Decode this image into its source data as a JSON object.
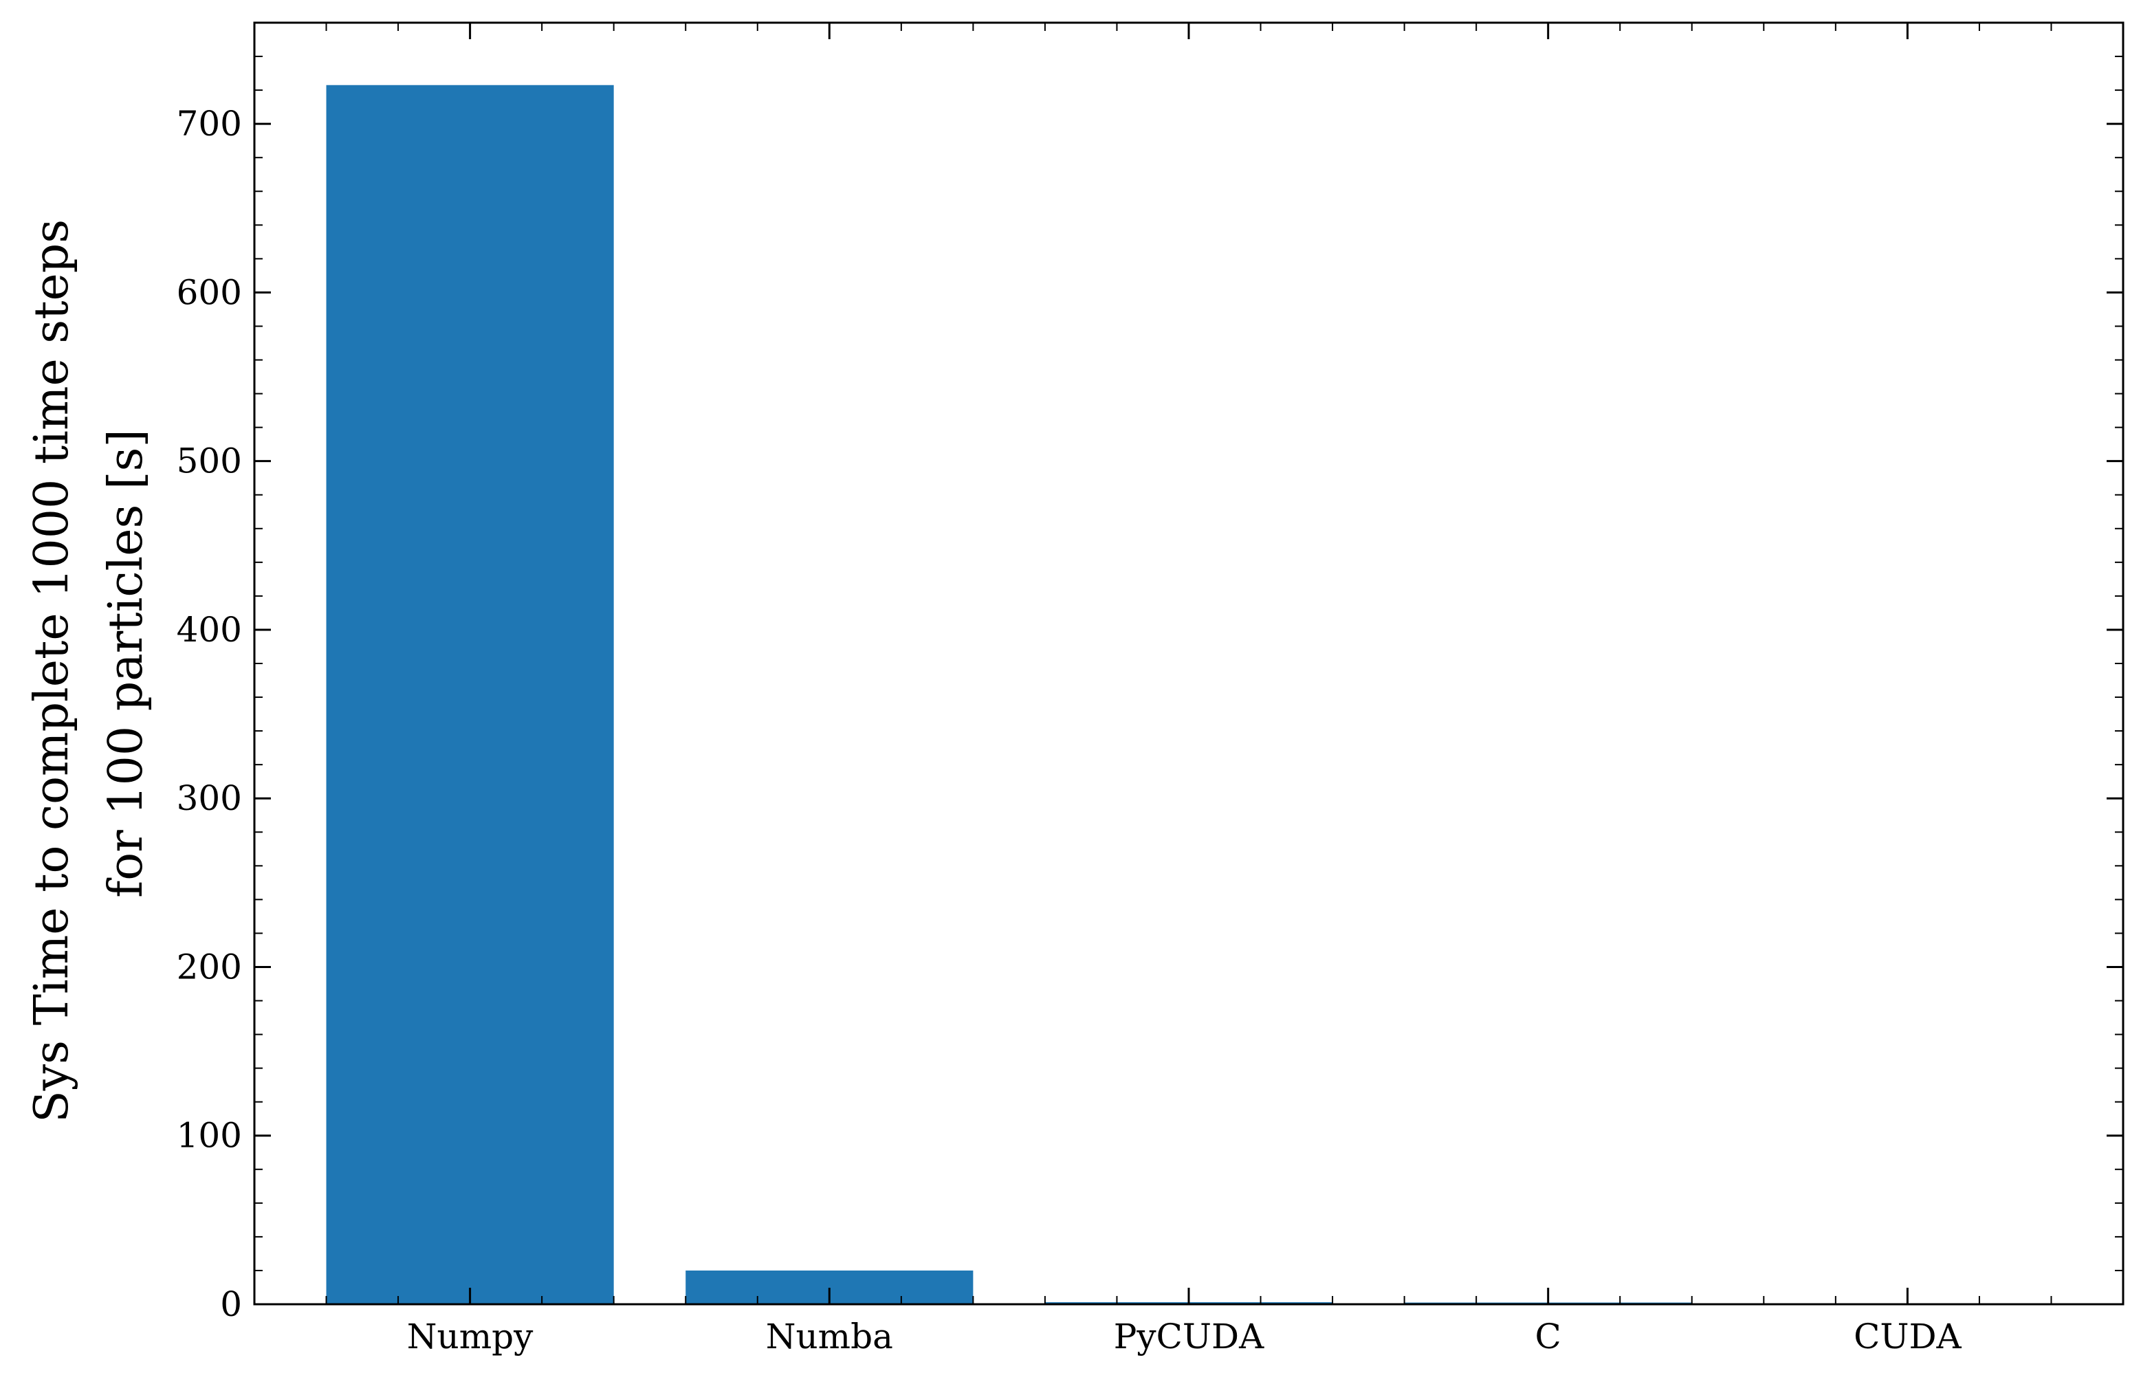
{
  "chart_data": {
    "type": "bar",
    "categories": [
      "Numpy",
      "Numba",
      "PyCUDA",
      "C",
      "CUDA"
    ],
    "values": [
      723,
      20,
      1.2,
      1.0,
      0.4
    ],
    "title": "",
    "xlabel": "",
    "ylabel": [
      "Sys Time to complete 1000 time steps",
      "for 100 particles [s]"
    ],
    "ylim": [
      0,
      760
    ],
    "yticks": [
      0,
      100,
      200,
      300,
      400,
      500,
      600,
      700
    ],
    "y_minor_step": 20,
    "grid": false,
    "bar_color": "#1f77b4"
  }
}
